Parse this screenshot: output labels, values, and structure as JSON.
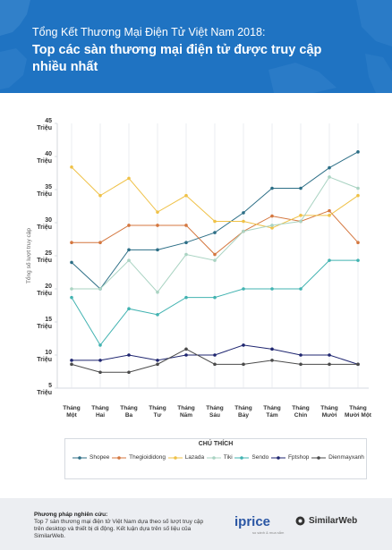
{
  "header": {
    "supertitle": "Tổng Kết Thương Mại Điện Tử Việt Nam 2018:",
    "title": "Top các sàn thương mại điện tử được truy cập nhiều nhất"
  },
  "chart_data": {
    "type": "line",
    "ylabel": "Tổng số lượt truy cập",
    "ylim": [
      5,
      45
    ],
    "yticks": [
      5,
      10,
      15,
      20,
      25,
      30,
      35,
      40,
      45
    ],
    "ytick_labels": [
      [
        "5",
        "Triệu"
      ],
      [
        "10",
        "Triệu"
      ],
      [
        "15",
        "Triệu"
      ],
      [
        "20",
        "Triệu"
      ],
      [
        "25",
        "Triệu"
      ],
      [
        "30",
        "Triệu"
      ],
      [
        "35",
        "Triệu"
      ],
      [
        "40",
        "Triệu"
      ],
      [
        "45",
        "Triệu"
      ]
    ],
    "categories": [
      [
        "Tháng",
        "Một"
      ],
      [
        "Tháng",
        "Hai"
      ],
      [
        "Tháng",
        "Ba"
      ],
      [
        "Tháng",
        "Tư"
      ],
      [
        "Tháng",
        "Năm"
      ],
      [
        "Tháng",
        "Sáu"
      ],
      [
        "Tháng",
        "Bảy"
      ],
      [
        "Tháng",
        "Tám"
      ],
      [
        "Tháng",
        "Chín"
      ],
      [
        "Tháng",
        "Mười"
      ],
      [
        "Tháng",
        "Mười Một"
      ]
    ],
    "grid": true,
    "legend_title": "CHÚ THÍCH",
    "legend_position": "bottom",
    "series": [
      {
        "name": "Shopee",
        "color": "#2c6e86",
        "values": [
          24,
          20,
          25.9,
          25.9,
          27,
          28.5,
          31.5,
          35.2,
          35.2,
          38.3,
          40.7
        ]
      },
      {
        "name": "Thegioididong",
        "color": "#d4773f",
        "values": [
          27,
          27,
          29.6,
          29.6,
          29.6,
          25.2,
          28.7,
          31,
          30.2,
          31.8,
          27
        ]
      },
      {
        "name": "Lazada",
        "color": "#efc147",
        "values": [
          38.4,
          34.1,
          36.7,
          31.6,
          34.1,
          30.2,
          30.2,
          29.2,
          31.1,
          31.1,
          34.1
        ]
      },
      {
        "name": "Tiki",
        "color": "#a9d3c2",
        "values": [
          20,
          20,
          24.3,
          19.5,
          25.2,
          24.3,
          28.7,
          29.6,
          30.2,
          36.9,
          35.2
        ]
      },
      {
        "name": "Sendo",
        "color": "#42b3b1",
        "values": [
          18.7,
          11.5,
          17,
          16.1,
          18.7,
          18.7,
          20,
          20,
          20,
          24.3,
          24.3
        ]
      },
      {
        "name": "Fptshop",
        "color": "#1f2670",
        "values": [
          9.2,
          9.2,
          10,
          9.2,
          10,
          10,
          11.5,
          10.9,
          10,
          10,
          8.6
        ]
      },
      {
        "name": "Dienmayxanh",
        "color": "#4b4b4b",
        "values": [
          8.6,
          7.4,
          7.4,
          8.6,
          10.9,
          8.6,
          8.6,
          9.2,
          8.6,
          8.6,
          8.6
        ]
      }
    ]
  },
  "footer": {
    "method_title": "Phương pháp nghiên cứu:",
    "method_text": "Top 7 sàn thương mại điện tử Việt Nam dựa theo số lượt truy cập trên desktop và thiết bị di động. Kết luận dựa trên số liệu của SimilarWeb.",
    "iprice_logo": "iprice",
    "iprice_tagline": "so sánh & mua sắm",
    "similarweb_logo": "SimilarWeb"
  }
}
